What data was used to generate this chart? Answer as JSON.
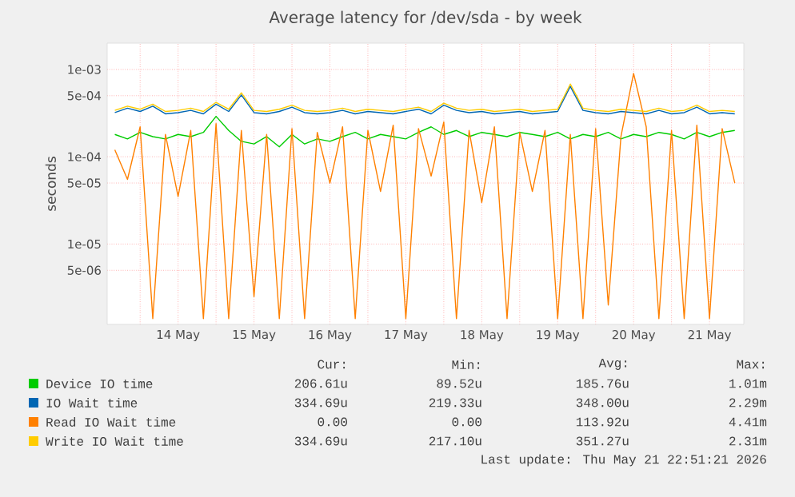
{
  "chart_data": {
    "type": "line",
    "title": "Average latency for /dev/sda - by week",
    "ylabel": "seconds",
    "log": true,
    "grid": true,
    "legend": "bottom",
    "marker": "none",
    "line_style": "solid",
    "xlim": [
      "2026-05-13T13:35",
      "2026-05-21T22:51"
    ],
    "xticks": [
      {
        "value": "2026-05-14T00:00",
        "label": null
      },
      {
        "value": "2026-05-14T12:00",
        "label": "14 May"
      },
      {
        "value": "2026-05-15T00:00",
        "label": null
      },
      {
        "value": "2026-05-15T12:00",
        "label": "15 May"
      },
      {
        "value": "2026-05-16T00:00",
        "label": null
      },
      {
        "value": "2026-05-16T12:00",
        "label": "16 May"
      },
      {
        "value": "2026-05-17T00:00",
        "label": null
      },
      {
        "value": "2026-05-17T12:00",
        "label": "17 May"
      },
      {
        "value": "2026-05-18T00:00",
        "label": null
      },
      {
        "value": "2026-05-18T12:00",
        "label": "18 May"
      },
      {
        "value": "2026-05-19T00:00",
        "label": null
      },
      {
        "value": "2026-05-19T12:00",
        "label": "19 May"
      },
      {
        "value": "2026-05-20T00:00",
        "label": null
      },
      {
        "value": "2026-05-20T12:00",
        "label": "20 May"
      },
      {
        "value": "2026-05-21T00:00",
        "label": null
      },
      {
        "value": "2026-05-21T12:00",
        "label": "21 May"
      }
    ],
    "ylim": [
      1.2e-06,
      0.002
    ],
    "yticks": [
      {
        "value": 5e-06,
        "label": "5e-06"
      },
      {
        "value": 1e-05,
        "label": "1e-05"
      },
      {
        "value": 5e-05,
        "label": "5e-05"
      },
      {
        "value": 0.0001,
        "label": "1e-04"
      },
      {
        "value": 0.0005,
        "label": "5e-04"
      },
      {
        "value": 0.001,
        "label": "1e-03"
      }
    ],
    "x": [
      "2026-05-13T16:00",
      "2026-05-13T20:00",
      "2026-05-14T00:00",
      "2026-05-14T04:00",
      "2026-05-14T08:00",
      "2026-05-14T12:00",
      "2026-05-14T16:00",
      "2026-05-14T20:00",
      "2026-05-15T00:00",
      "2026-05-15T04:00",
      "2026-05-15T08:00",
      "2026-05-15T12:00",
      "2026-05-15T16:00",
      "2026-05-15T20:00",
      "2026-05-16T00:00",
      "2026-05-16T04:00",
      "2026-05-16T08:00",
      "2026-05-16T12:00",
      "2026-05-16T16:00",
      "2026-05-16T20:00",
      "2026-05-17T00:00",
      "2026-05-17T04:00",
      "2026-05-17T08:00",
      "2026-05-17T12:00",
      "2026-05-17T16:00",
      "2026-05-17T20:00",
      "2026-05-18T00:00",
      "2026-05-18T04:00",
      "2026-05-18T08:00",
      "2026-05-18T12:00",
      "2026-05-18T16:00",
      "2026-05-18T20:00",
      "2026-05-19T00:00",
      "2026-05-19T04:00",
      "2026-05-19T08:00",
      "2026-05-19T12:00",
      "2026-05-19T16:00",
      "2026-05-19T20:00",
      "2026-05-20T00:00",
      "2026-05-20T04:00",
      "2026-05-20T08:00",
      "2026-05-20T12:00",
      "2026-05-20T16:00",
      "2026-05-20T20:00",
      "2026-05-21T00:00",
      "2026-05-21T04:00",
      "2026-05-21T08:00",
      "2026-05-21T12:00",
      "2026-05-21T16:00",
      "2026-05-21T20:00"
    ],
    "series": [
      {
        "name": "Device IO time",
        "color": "#00cc00",
        "values": [
          0.00018,
          0.00016,
          0.00019,
          0.00017,
          0.00016,
          0.00018,
          0.00017,
          0.00019,
          0.00029,
          0.0002,
          0.00015,
          0.00014,
          0.00017,
          0.00013,
          0.00018,
          0.00014,
          0.00016,
          0.00015,
          0.00017,
          0.00019,
          0.00016,
          0.00018,
          0.00017,
          0.00016,
          0.00019,
          0.00022,
          0.00018,
          0.0002,
          0.00017,
          0.00019,
          0.00018,
          0.00017,
          0.00019,
          0.00018,
          0.00017,
          0.00019,
          0.00016,
          0.00018,
          0.00017,
          0.00019,
          0.00016,
          0.00018,
          0.00017,
          0.00019,
          0.00018,
          0.00016,
          0.00019,
          0.00017,
          0.00019,
          0.0002
        ]
      },
      {
        "name": "IO Wait time",
        "color": "#0066b3",
        "values": [
          0.00032,
          0.00036,
          0.00033,
          0.00038,
          0.00031,
          0.00032,
          0.00034,
          0.00031,
          0.0004,
          0.00033,
          0.00051,
          0.00032,
          0.00031,
          0.00033,
          0.00037,
          0.00032,
          0.00031,
          0.00032,
          0.00034,
          0.00031,
          0.00033,
          0.00032,
          0.00031,
          0.00033,
          0.00035,
          0.00031,
          0.00039,
          0.00034,
          0.00032,
          0.00033,
          0.00031,
          0.00032,
          0.00033,
          0.00031,
          0.00032,
          0.00033,
          0.00064,
          0.00034,
          0.00032,
          0.00031,
          0.00033,
          0.00032,
          0.00031,
          0.00034,
          0.00031,
          0.00032,
          0.00037,
          0.00031,
          0.00032,
          0.00031
        ]
      },
      {
        "name": "Read IO Wait time",
        "color": "#ff8000",
        "values": [
          0.00012,
          5.5e-05,
          0.00022,
          1.4e-06,
          0.00018,
          3.5e-05,
          0.0002,
          1.4e-06,
          0.00024,
          1.4e-06,
          0.0002,
          2.5e-06,
          0.00018,
          1.4e-06,
          0.00021,
          1.4e-06,
          0.00019,
          5e-05,
          0.00022,
          1.4e-06,
          0.0002,
          4e-05,
          0.00023,
          1.4e-06,
          0.00021,
          6e-05,
          0.00025,
          1.4e-06,
          0.0002,
          3e-05,
          0.00022,
          1.4e-06,
          0.00019,
          4e-05,
          0.0002,
          1.4e-06,
          0.00018,
          1.4e-06,
          0.00021,
          2e-06,
          0.00017,
          0.0009,
          0.00022,
          1.4e-06,
          0.0002,
          1.4e-06,
          0.00023,
          1.4e-06,
          0.00021,
          5e-05
        ]
      },
      {
        "name": "Write IO Wait time",
        "color": "#ffcc00",
        "values": [
          0.00034,
          0.00038,
          0.00035,
          0.0004,
          0.00033,
          0.00034,
          0.00036,
          0.00033,
          0.00042,
          0.00035,
          0.00054,
          0.00034,
          0.00033,
          0.00035,
          0.00039,
          0.00034,
          0.00033,
          0.00034,
          0.00036,
          0.00033,
          0.00035,
          0.00034,
          0.00033,
          0.00035,
          0.00037,
          0.00033,
          0.00041,
          0.00036,
          0.00034,
          0.00035,
          0.00033,
          0.00034,
          0.00035,
          0.00033,
          0.00034,
          0.00035,
          0.00068,
          0.00036,
          0.00034,
          0.00033,
          0.00035,
          0.00034,
          0.00033,
          0.00036,
          0.00033,
          0.00034,
          0.00039,
          0.00033,
          0.00034,
          0.00033
        ]
      }
    ],
    "annotations": [
      "Cur:",
      "Min:",
      "Avg:",
      "Max:",
      "206.61u",
      "89.52u",
      "185.76u",
      "1.01m",
      "334.69u",
      "219.33u",
      "348.00u",
      "2.29m",
      "0.00",
      "0.00",
      "113.92u",
      "4.41m",
      "334.69u",
      "217.10u",
      "351.27u",
      "2.31m",
      "Last update: Thu May 21 22:51:21 2026"
    ]
  }
}
